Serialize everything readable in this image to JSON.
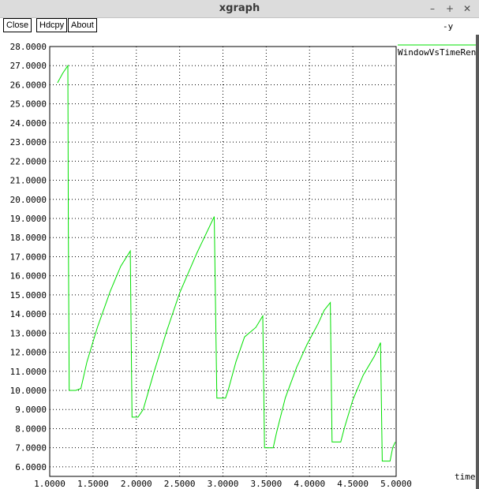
{
  "window": {
    "title": "xgraph",
    "controls": {
      "minimize": "–",
      "maximize": "+",
      "close": "✕"
    }
  },
  "toolbar": {
    "close_label": "Close",
    "hdcpy_label": "Hdcpy",
    "about_label": "About",
    "y_axis_tag": "-y"
  },
  "chart_data": {
    "type": "line",
    "xlabel": "time",
    "ylabel": "-y",
    "xlim": [
      1.0,
      5.0
    ],
    "ylim": [
      5.5,
      28.0
    ],
    "x_ticks": [
      "1.0000",
      "1.5000",
      "2.0000",
      "2.5000",
      "3.0000",
      "3.5000",
      "4.0000",
      "4.5000",
      "5.0000"
    ],
    "y_ticks": [
      "6.0000",
      "7.0000",
      "8.0000",
      "9.0000",
      "10.0000",
      "11.0000",
      "12.0000",
      "13.0000",
      "14.0000",
      "15.0000",
      "16.0000",
      "17.0000",
      "18.0000",
      "19.0000",
      "20.0000",
      "21.0000",
      "22.0000",
      "23.0000",
      "24.0000",
      "25.0000",
      "26.0000",
      "27.0000",
      "28.0000"
    ],
    "grid": true,
    "legend_position": "top-right",
    "series": [
      {
        "name": "WindowVsTimeReno",
        "color": "#00e000",
        "points": [
          [
            1.09,
            26.1
          ],
          [
            1.15,
            26.6
          ],
          [
            1.21,
            27.0
          ],
          [
            1.215,
            18.5
          ],
          [
            1.225,
            10.0
          ],
          [
            1.3,
            10.0
          ],
          [
            1.36,
            10.1
          ],
          [
            1.43,
            11.5
          ],
          [
            1.55,
            13.3
          ],
          [
            1.7,
            15.2
          ],
          [
            1.82,
            16.5
          ],
          [
            1.93,
            17.3
          ],
          [
            1.95,
            8.6
          ],
          [
            2.02,
            8.6
          ],
          [
            2.08,
            9.0
          ],
          [
            2.2,
            10.9
          ],
          [
            2.35,
            13.1
          ],
          [
            2.5,
            15.1
          ],
          [
            2.7,
            17.2
          ],
          [
            2.9,
            19.1
          ],
          [
            2.93,
            9.6
          ],
          [
            3.03,
            9.6
          ],
          [
            3.06,
            10.0
          ],
          [
            3.15,
            11.5
          ],
          [
            3.25,
            12.8
          ],
          [
            3.38,
            13.3
          ],
          [
            3.46,
            13.9
          ],
          [
            3.48,
            7.0
          ],
          [
            3.58,
            7.0
          ],
          [
            3.62,
            7.8
          ],
          [
            3.72,
            9.6
          ],
          [
            3.85,
            11.2
          ],
          [
            3.97,
            12.4
          ],
          [
            4.1,
            13.5
          ],
          [
            4.17,
            14.2
          ],
          [
            4.24,
            14.6
          ],
          [
            4.26,
            7.3
          ],
          [
            4.36,
            7.3
          ],
          [
            4.4,
            8.0
          ],
          [
            4.5,
            9.5
          ],
          [
            4.62,
            10.8
          ],
          [
            4.75,
            11.8
          ],
          [
            4.82,
            12.5
          ],
          [
            4.84,
            6.3
          ],
          [
            4.93,
            6.3
          ],
          [
            4.96,
            7.0
          ],
          [
            4.99,
            7.3
          ]
        ]
      }
    ]
  }
}
